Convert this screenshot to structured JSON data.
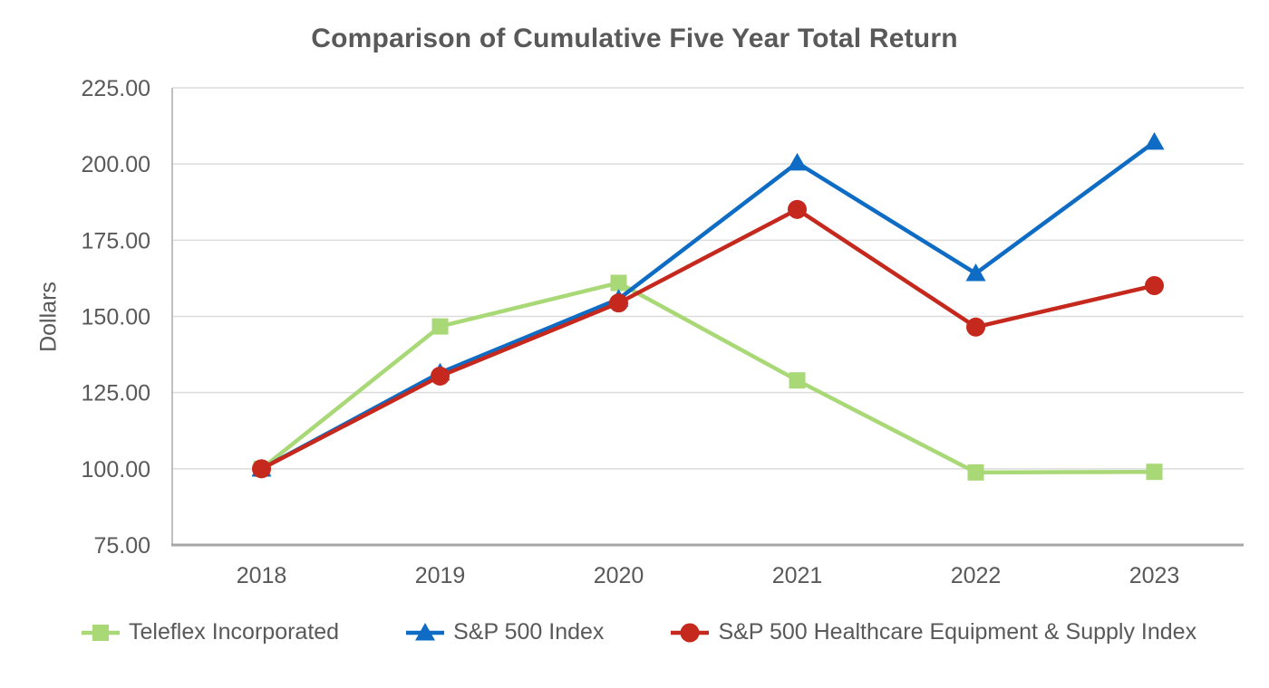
{
  "page": {
    "background": "#FFFFFF"
  },
  "style": {
    "text_color": "#595959",
    "gridline_color": "#DCDCDC",
    "axis_color": "#BFBFBF",
    "baseline_color": "#A6A6A6"
  },
  "chart_data": {
    "type": "line",
    "title": "Comparison of Cumulative Five Year Total Return",
    "xlabel": "",
    "ylabel": "Dollars",
    "categories": [
      "2018",
      "2019",
      "2020",
      "2021",
      "2022",
      "2023"
    ],
    "series": [
      {
        "name": "Teleflex Incorporated",
        "marker": "square",
        "color": "#A9D876",
        "values": [
          100.0,
          146.7,
          161.0,
          129.0,
          98.8,
          99.0
        ]
      },
      {
        "name": "S&P 500 Index",
        "marker": "triangle",
        "color": "#0E6CC4",
        "values": [
          100.0,
          131.5,
          155.7,
          200.4,
          164.1,
          207.2
        ]
      },
      {
        "name": "S&P 500 Healthcare Equipment & Supply Index",
        "marker": "circle",
        "color": "#C5281C",
        "values": [
          100.0,
          130.4,
          154.4,
          185.1,
          146.5,
          160.1
        ]
      }
    ],
    "ylim": [
      75,
      225
    ],
    "ytick_step": 25,
    "ytick_labels": [
      "75.00",
      "100.00",
      "125.00",
      "150.00",
      "175.00",
      "200.00",
      "225.00"
    ],
    "grid": "horizontal",
    "legend_position": "bottom"
  }
}
